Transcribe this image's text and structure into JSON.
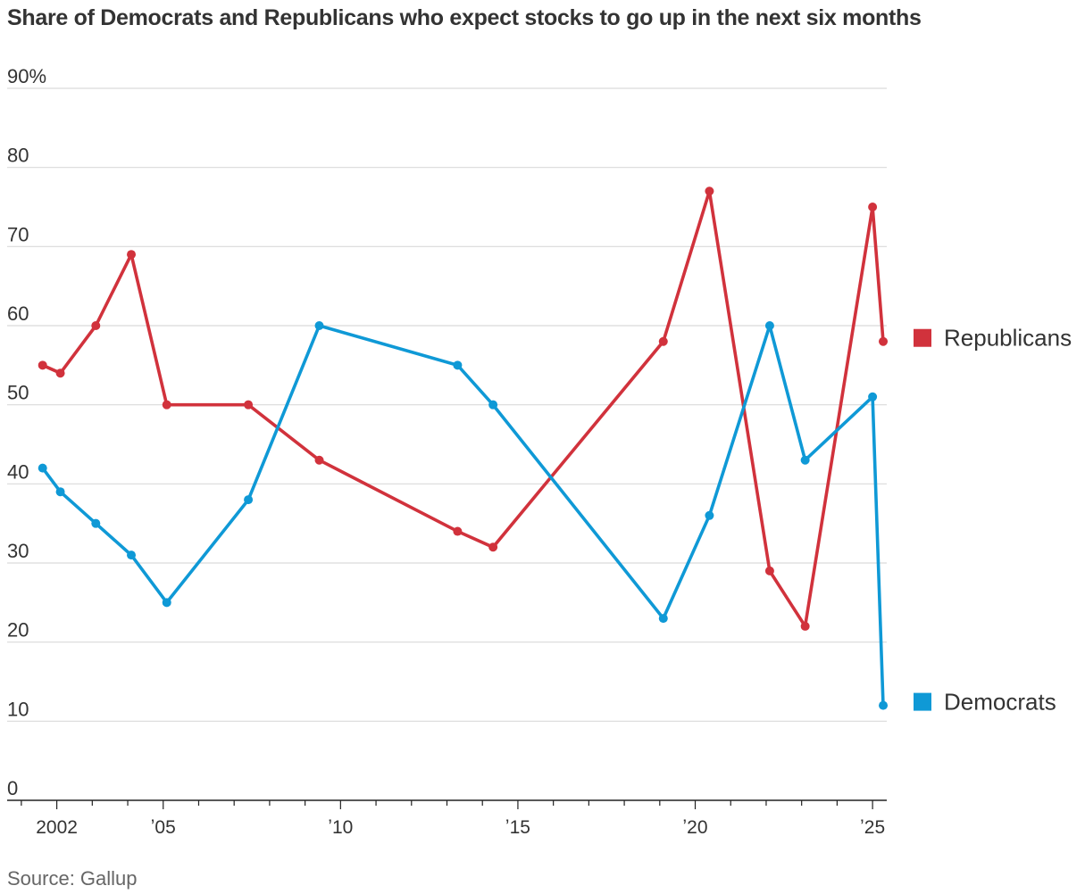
{
  "title": "Share of Democrats and Republicans who expect stocks to go up in the next six months",
  "source": "Source: Gallup",
  "chart_data": {
    "type": "line",
    "title": "Share of Democrats and Republicans who expect stocks to go up in the next six months",
    "xlabel": "",
    "ylabel": "",
    "ylim": [
      0,
      90
    ],
    "xlim": [
      2000.6,
      2025.4
    ],
    "y_ticks": [
      {
        "value": 90,
        "label": "90%"
      },
      {
        "value": 80,
        "label": "80"
      },
      {
        "value": 70,
        "label": "70"
      },
      {
        "value": 60,
        "label": "60"
      },
      {
        "value": 50,
        "label": "50"
      },
      {
        "value": 40,
        "label": "40"
      },
      {
        "value": 30,
        "label": "30"
      },
      {
        "value": 20,
        "label": "20"
      },
      {
        "value": 10,
        "label": "10"
      },
      {
        "value": 0,
        "label": "0"
      }
    ],
    "x_ticks": [
      {
        "value": 2002,
        "label": "2002"
      },
      {
        "value": 2005,
        "label": "ʼ05"
      },
      {
        "value": 2010,
        "label": "ʼ10"
      },
      {
        "value": 2015,
        "label": "ʼ15"
      },
      {
        "value": 2020,
        "label": "ʼ20"
      },
      {
        "value": 2025,
        "label": "ʼ25"
      }
    ],
    "grid": true,
    "legend": "right",
    "series": [
      {
        "name": "Republicans",
        "color": "#d1323c",
        "x": [
          2001.6,
          2002.1,
          2003.1,
          2004.1,
          2005.1,
          2007.4,
          2009.4,
          2013.3,
          2014.3,
          2019.1,
          2020.4,
          2022.1,
          2023.1,
          2025.0,
          2025.3
        ],
        "y": [
          55,
          54,
          60,
          69,
          50,
          50,
          43,
          34,
          32,
          58,
          77,
          29,
          22,
          75,
          58
        ]
      },
      {
        "name": "Democrats",
        "color": "#0f99d6",
        "x": [
          2001.6,
          2002.1,
          2003.1,
          2004.1,
          2005.1,
          2007.4,
          2009.4,
          2013.3,
          2014.3,
          2019.1,
          2020.4,
          2022.1,
          2023.1,
          2025.0,
          2025.3
        ],
        "y": [
          42,
          39,
          35,
          31,
          25,
          38,
          60,
          55,
          50,
          23,
          36,
          60,
          43,
          51,
          12
        ]
      }
    ]
  }
}
